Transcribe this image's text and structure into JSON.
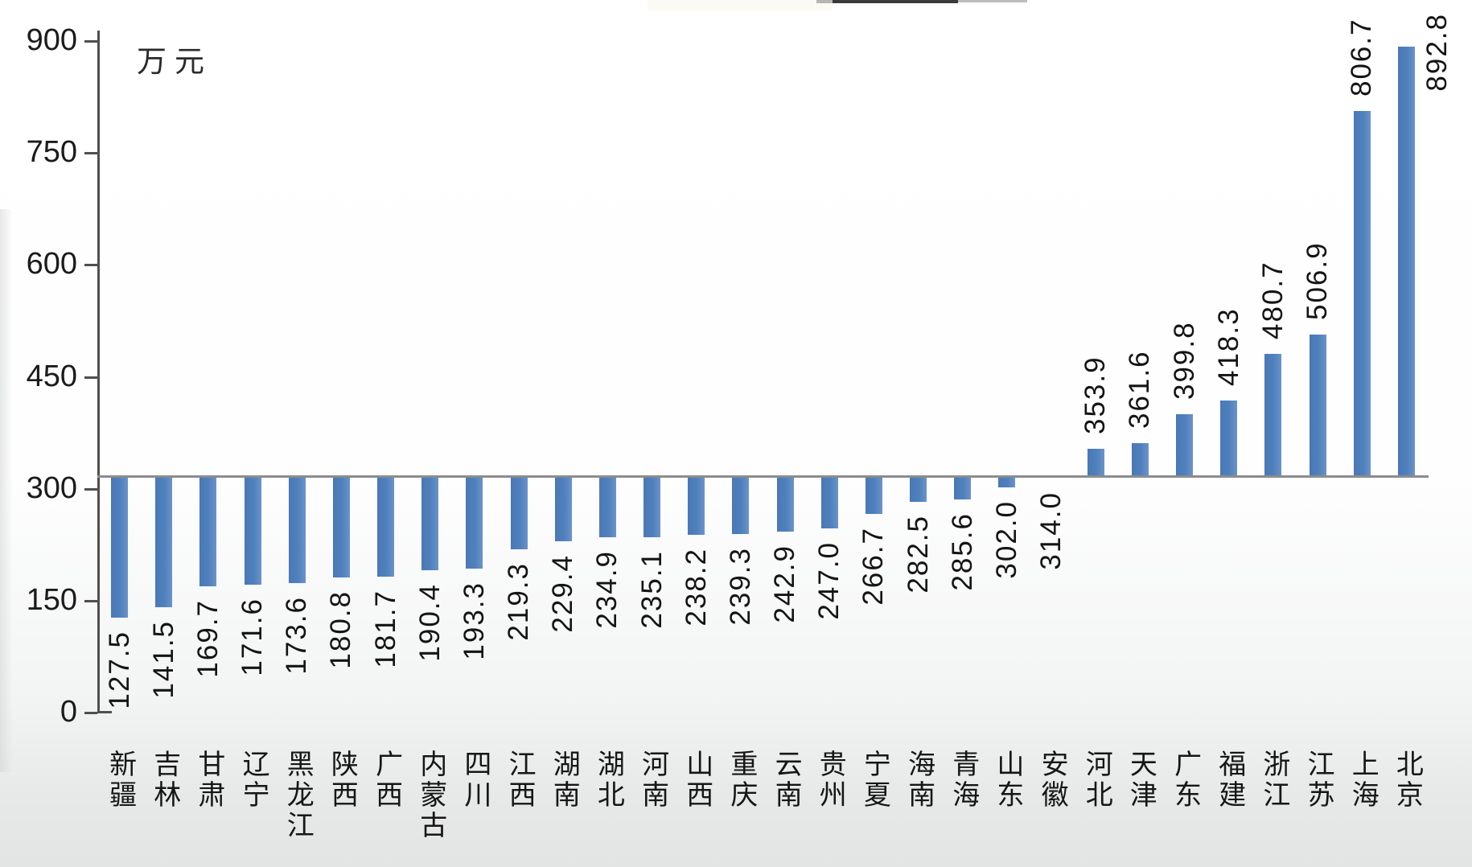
{
  "chart_data": {
    "type": "bar",
    "title": "",
    "unit_label": "万元",
    "categories": [
      "新疆",
      "吉林",
      "甘肃",
      "辽宁",
      "黑龙江",
      "陕西",
      "广西",
      "内蒙古",
      "四川",
      "江西",
      "湖南",
      "湖北",
      "河南",
      "山西",
      "重庆",
      "云南",
      "贵州",
      "宁夏",
      "海南",
      "青海",
      "山东",
      "安徽",
      "河北",
      "天津",
      "广东",
      "福建",
      "浙江",
      "江苏",
      "上海",
      "北京"
    ],
    "values": [
      127.5,
      141.5,
      169.7,
      171.6,
      173.6,
      180.8,
      181.7,
      190.4,
      193.3,
      219.3,
      229.4,
      234.9,
      235.1,
      238.2,
      239.3,
      242.9,
      247.0,
      266.7,
      282.5,
      285.6,
      302.0,
      314.0,
      353.9,
      361.6,
      399.8,
      418.3,
      480.7,
      506.9,
      806.7,
      892.8
    ],
    "value_labels": [
      "127.5",
      "141.5",
      "169.7",
      "171.6",
      "173.6",
      "180.8",
      "181.7",
      "190.4",
      "193.3",
      "219.3",
      "229.4",
      "234.9",
      "235.1",
      "238.2",
      "239.3",
      "242.9",
      "247.0",
      "266.7",
      "282.5",
      "285.6",
      "302.0",
      "314.0",
      "353.9",
      "361.6",
      "399.8",
      "418.3",
      "480.7",
      "506.9",
      "806.7",
      "892.8"
    ],
    "ylim": [
      0,
      900
    ],
    "yticks": [
      0,
      150,
      300,
      450,
      600,
      750,
      900
    ],
    "axis_crosses_at": 314.0,
    "grid": false,
    "legend": null,
    "bar_color": "#4f81bd",
    "axis_color": "#4f4f4f",
    "baseline_color": "#8c8c8c",
    "text_color": "#141414"
  }
}
